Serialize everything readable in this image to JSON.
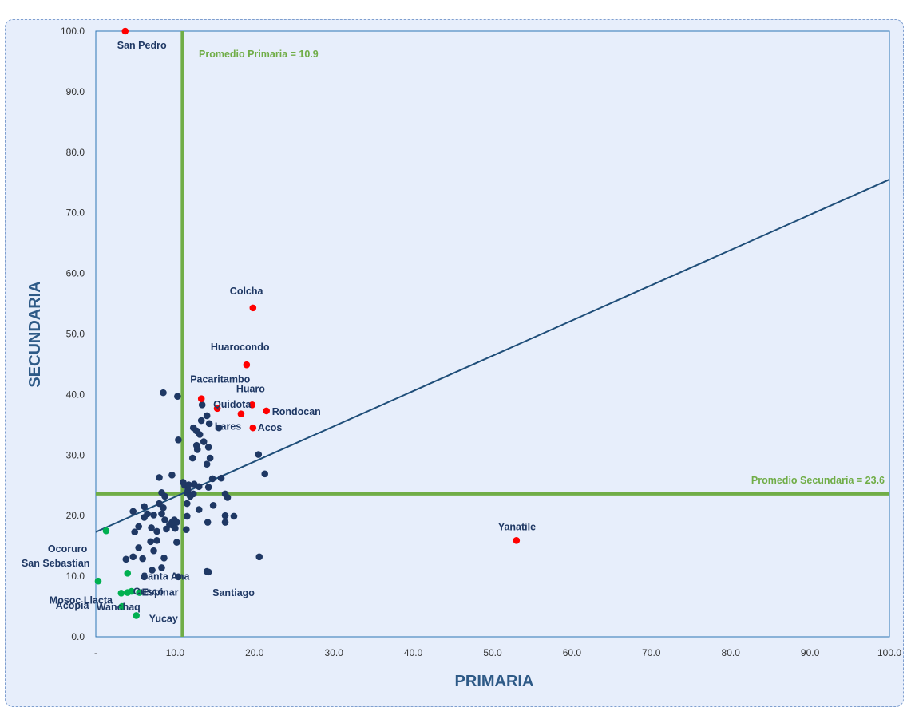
{
  "chart_data": {
    "type": "scatter",
    "title": "",
    "xlabel": "PRIMARIA",
    "ylabel": "SECUNDARIA",
    "xlim": [
      0,
      100
    ],
    "ylim": [
      0,
      100
    ],
    "x_ticks": [
      "-",
      "10.0",
      "20.0",
      "30.0",
      "40.0",
      "50.0",
      "60.0",
      "70.0",
      "80.0",
      "90.0",
      "100.0"
    ],
    "y_ticks": [
      "0.0",
      "10.0",
      "20.0",
      "30.0",
      "40.0",
      "50.0",
      "60.0",
      "70.0",
      "80.0",
      "90.0",
      "100.0"
    ],
    "grid": false,
    "colors": {
      "high": "#ff0000",
      "mid": "#1f3864",
      "low": "#00b050",
      "avg_lines": "#70ad47",
      "trend": "#1f4e79",
      "border": "#2e75b6"
    },
    "avg_primaria": 10.9,
    "avg_secundaria": 23.6,
    "avg_primaria_label": "Promedio Primaria = 10.9",
    "avg_secundaria_label": "Promedio Secundaria = 23.6",
    "trendline": {
      "x": [
        0,
        100
      ],
      "y": [
        17.3,
        75.5
      ]
    },
    "labeled_points": [
      {
        "name": "San Pedro",
        "x": 3.7,
        "y": 100.0,
        "group": "high"
      },
      {
        "name": "Colcha",
        "x": 19.8,
        "y": 54.3,
        "group": "high"
      },
      {
        "name": "Huarocondo",
        "x": 19.0,
        "y": 44.9,
        "group": "high"
      },
      {
        "name": "Pacaritambo",
        "x": 13.3,
        "y": 39.3,
        "group": "high"
      },
      {
        "name": "Quidota",
        "x": 15.3,
        "y": 37.7,
        "group": "high"
      },
      {
        "name": "Huaro",
        "x": 19.7,
        "y": 38.3,
        "group": "high"
      },
      {
        "name": "Rondocan",
        "x": 21.5,
        "y": 37.3,
        "group": "high"
      },
      {
        "name": "Lares",
        "x": 18.3,
        "y": 36.8,
        "group": "high"
      },
      {
        "name": "Acos",
        "x": 19.8,
        "y": 34.5,
        "group": "high"
      },
      {
        "name": "Yanatile",
        "x": 53.0,
        "y": 15.9,
        "group": "high"
      },
      {
        "name": "Ocoruro",
        "x": 1.3,
        "y": 17.5,
        "group": "low"
      },
      {
        "name": "San Sebastian",
        "x": 0.3,
        "y": 9.2,
        "group": "low"
      },
      {
        "name": "Santa Ana",
        "x": 4.0,
        "y": 10.5,
        "group": "low"
      },
      {
        "name": "Mosoc Llacta",
        "x": 3.2,
        "y": 7.2,
        "group": "low"
      },
      {
        "name": "Espinar",
        "x": 5.5,
        "y": 7.3,
        "group": "low"
      },
      {
        "name": "Acopia",
        "x": 3.3,
        "y": 5.0,
        "group": "low"
      },
      {
        "name": "Cusco",
        "x": 4.0,
        "y": 7.3,
        "group": "low"
      },
      {
        "name": "Yucay",
        "x": 5.1,
        "y": 3.5,
        "group": "low"
      },
      {
        "name": "Wanchaq",
        "x": 4.5,
        "y": 7.5,
        "group": "low"
      },
      {
        "name": "Santiago",
        "x": 14.2,
        "y": 10.7,
        "group": "mid"
      }
    ],
    "other_points": [
      [
        8.5,
        40.3
      ],
      [
        10.3,
        39.7
      ],
      [
        13.4,
        38.3
      ],
      [
        12.3,
        34.5
      ],
      [
        12.7,
        34.0
      ],
      [
        14.0,
        36.5
      ],
      [
        14.3,
        35.2
      ],
      [
        13.3,
        35.7
      ],
      [
        15.5,
        34.5
      ],
      [
        13.1,
        33.4
      ],
      [
        10.4,
        32.5
      ],
      [
        13.6,
        32.2
      ],
      [
        12.7,
        31.6
      ],
      [
        12.8,
        30.9
      ],
      [
        14.2,
        31.3
      ],
      [
        12.2,
        29.5
      ],
      [
        14.4,
        29.5
      ],
      [
        14.0,
        28.5
      ],
      [
        20.5,
        30.1
      ],
      [
        21.3,
        26.9
      ],
      [
        8.0,
        26.3
      ],
      [
        9.6,
        26.7
      ],
      [
        14.7,
        26.1
      ],
      [
        15.8,
        26.2
      ],
      [
        11.0,
        25.5
      ],
      [
        11.2,
        25.0
      ],
      [
        11.7,
        25.1
      ],
      [
        12.4,
        25.2
      ],
      [
        13.0,
        24.8
      ],
      [
        14.2,
        24.7
      ],
      [
        11.6,
        24.2
      ],
      [
        11.5,
        23.7
      ],
      [
        12.3,
        23.6
      ],
      [
        11.9,
        23.2
      ],
      [
        8.3,
        23.8
      ],
      [
        8.7,
        23.2
      ],
      [
        16.3,
        23.6
      ],
      [
        16.6,
        23.0
      ],
      [
        6.1,
        21.5
      ],
      [
        4.7,
        20.7
      ],
      [
        8.5,
        21.3
      ],
      [
        8.0,
        22.0
      ],
      [
        11.5,
        22.0
      ],
      [
        14.8,
        21.7
      ],
      [
        6.5,
        20.3
      ],
      [
        7.3,
        20.1
      ],
      [
        8.3,
        20.3
      ],
      [
        11.5,
        19.9
      ],
      [
        13.0,
        21.0
      ],
      [
        6.1,
        19.7
      ],
      [
        8.7,
        19.3
      ],
      [
        9.6,
        18.9
      ],
      [
        9.9,
        19.3
      ],
      [
        10.2,
        18.9
      ],
      [
        9.3,
        18.5
      ],
      [
        9.7,
        18.4
      ],
      [
        16.3,
        20.0
      ],
      [
        16.3,
        18.9
      ],
      [
        17.4,
        19.9
      ],
      [
        14.1,
        18.9
      ],
      [
        7.0,
        18.0
      ],
      [
        8.9,
        17.8
      ],
      [
        10.0,
        17.9
      ],
      [
        11.4,
        17.7
      ],
      [
        5.4,
        18.2
      ],
      [
        4.9,
        17.3
      ],
      [
        7.7,
        17.4
      ],
      [
        6.9,
        15.7
      ],
      [
        7.7,
        15.9
      ],
      [
        10.2,
        15.6
      ],
      [
        5.4,
        14.7
      ],
      [
        7.3,
        14.2
      ],
      [
        4.7,
        13.2
      ],
      [
        5.9,
        12.9
      ],
      [
        8.6,
        13.0
      ],
      [
        3.8,
        12.8
      ],
      [
        20.6,
        13.2
      ],
      [
        7.1,
        11.0
      ],
      [
        8.3,
        11.4
      ],
      [
        6.1,
        9.9
      ],
      [
        10.4,
        9.9
      ],
      [
        14.0,
        10.8
      ]
    ]
  }
}
